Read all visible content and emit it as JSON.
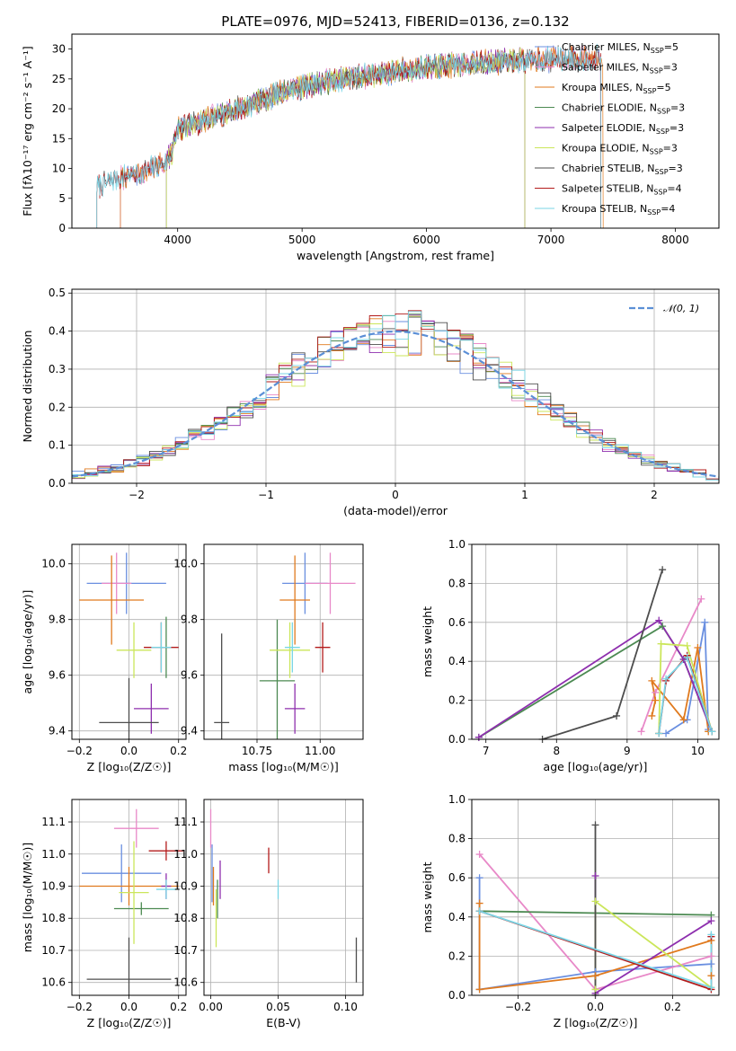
{
  "figure": {
    "title": "PLATE=0976, MJD=52413, FIBERID=0136, z=0.132"
  },
  "colors": {
    "Chabrier MILES": "#6a8fe0",
    "Salpeter MILES": "#e889c8",
    "Kroupa MILES": "#e07a1e",
    "Chabrier ELODIE": "#4c8a52",
    "Salpeter ELODIE": "#8e2fae",
    "Kroupa ELODIE": "#cbe65a",
    "Chabrier STELIB": "#4d4d4d",
    "Salpeter STELIB": "#b31b1b",
    "Kroupa STELIB": "#79d6e6",
    "normal": "#5b8fd6"
  },
  "chart_data": [
    {
      "id": "spectrum",
      "type": "line",
      "xlabel": "wavelength [Angstrom, rest frame]",
      "ylabel": "Flux [fλ10⁻¹⁷ erg cm⁻² s⁻¹ A⁻¹]",
      "xlim": [
        3150,
        8350
      ],
      "ylim": [
        0,
        32.5
      ],
      "xticks": [
        4000,
        5000,
        6000,
        7000,
        8000
      ],
      "yticks": [
        0,
        5,
        10,
        15,
        20,
        25,
        30
      ],
      "grid": false,
      "legend_position": "upper right",
      "continuum": [
        [
          3350,
          7
        ],
        [
          3550,
          8.5
        ],
        [
          3700,
          9.2
        ],
        [
          3900,
          11
        ],
        [
          3960,
          13
        ],
        [
          4000,
          16.5
        ],
        [
          4200,
          18
        ],
        [
          4500,
          20
        ],
        [
          4800,
          22.5
        ],
        [
          5100,
          24.2
        ],
        [
          5500,
          25.5
        ],
        [
          6000,
          27
        ],
        [
          6500,
          27.8
        ],
        [
          7000,
          28.3
        ],
        [
          7400,
          28.6
        ]
      ],
      "series": [
        {
          "name": "Chabrier MILES, N_SSP=5",
          "model": "Chabrier MILES",
          "xrange": [
            3540,
            7400
          ]
        },
        {
          "name": "Salpeter MILES, N_SSP=3",
          "model": "Salpeter MILES",
          "xrange": [
            3540,
            7400
          ]
        },
        {
          "name": "Kroupa MILES, N_SSP=5",
          "model": "Kroupa MILES",
          "xrange": [
            3540,
            7420
          ]
        },
        {
          "name": "Chabrier ELODIE, N_SSP=3",
          "model": "Chabrier ELODIE",
          "xrange": [
            3910,
            6790
          ]
        },
        {
          "name": "Salpeter ELODIE, N_SSP=3",
          "model": "Salpeter ELODIE",
          "xrange": [
            3910,
            6790
          ]
        },
        {
          "name": "Kroupa ELODIE, N_SSP=3",
          "model": "Kroupa ELODIE",
          "xrange": [
            3910,
            6790
          ]
        },
        {
          "name": "Chabrier STELIB, N_SSP=3",
          "model": "Chabrier STELIB",
          "xrange": [
            3350,
            7400
          ]
        },
        {
          "name": "Salpeter STELIB, N_SSP=4",
          "model": "Salpeter STELIB",
          "xrange": [
            3350,
            7400
          ]
        },
        {
          "name": "Kroupa STELIB, N_SSP=4",
          "model": "Kroupa STELIB",
          "xrange": [
            3350,
            7400
          ]
        }
      ],
      "legend": [
        {
          "model": "Chabrier MILES",
          "label": "Chabrier MILES, N",
          "sub": "SSP",
          "suffix": "=5"
        },
        {
          "model": "Salpeter MILES",
          "label": "Salpeter MILES, N",
          "sub": "SSP",
          "suffix": "=3"
        },
        {
          "model": "Kroupa MILES",
          "label": "Kroupa MILES, N",
          "sub": "SSP",
          "suffix": "=5"
        },
        {
          "model": "Chabrier ELODIE",
          "label": "Chabrier ELODIE, N",
          "sub": "SSP",
          "suffix": "=3"
        },
        {
          "model": "Salpeter ELODIE",
          "label": "Salpeter ELODIE, N",
          "sub": "SSP",
          "suffix": "=3"
        },
        {
          "model": "Kroupa ELODIE",
          "label": "Kroupa ELODIE, N",
          "sub": "SSP",
          "suffix": "=3"
        },
        {
          "model": "Chabrier STELIB",
          "label": "Chabrier STELIB, N",
          "sub": "SSP",
          "suffix": "=3"
        },
        {
          "model": "Salpeter STELIB",
          "label": "Salpeter STELIB, N",
          "sub": "SSP",
          "suffix": "=4"
        },
        {
          "model": "Kroupa STELIB",
          "label": "Kroupa STELIB, N",
          "sub": "SSP",
          "suffix": "=4"
        }
      ]
    },
    {
      "id": "residuals",
      "type": "line",
      "xlabel": "(data-model)/error",
      "ylabel": "Normed distribution",
      "xlim": [
        -2.5,
        2.5
      ],
      "ylim": [
        0,
        0.51
      ],
      "xticks": [
        -2,
        -1,
        0,
        1,
        2
      ],
      "yticks": [
        0.0,
        0.1,
        0.2,
        0.3,
        0.4,
        0.5
      ],
      "grid": true,
      "bin_width": 0.1,
      "legend_position": "upper right",
      "legend_label": "𝒩(0, 1)",
      "series_models": [
        "Chabrier MILES",
        "Salpeter MILES",
        "Kroupa MILES",
        "Chabrier ELODIE",
        "Salpeter ELODIE",
        "Kroupa ELODIE",
        "Chabrier STELIB",
        "Salpeter STELIB",
        "Kroupa STELIB"
      ]
    },
    {
      "id": "age_vs_Z",
      "type": "scatter",
      "xlabel": "Z [log₁₀(Z/Z☉)]",
      "ylabel": "age  [log₁₀(age/yr)]",
      "xlim": [
        -0.23,
        0.23
      ],
      "ylim": [
        9.37,
        10.07
      ],
      "xticks": [
        -0.2,
        0.0,
        0.2
      ],
      "yticks": [
        9.4,
        9.6,
        9.8,
        10.0
      ],
      "grid": true,
      "points": [
        {
          "model": "Chabrier MILES",
          "x": -0.01,
          "y": 9.93,
          "xerr": 0.16,
          "yerr": 0.11
        },
        {
          "model": "Salpeter MILES",
          "x": -0.05,
          "y": 9.93,
          "xerr": 0.06,
          "yerr": 0.11
        },
        {
          "model": "Kroupa MILES",
          "x": -0.07,
          "y": 9.87,
          "xerr": 0.13,
          "yerr": 0.16
        },
        {
          "model": "Chabrier ELODIE",
          "x": 0.15,
          "y": 9.7,
          "xerr": 0.02,
          "yerr": 0.11
        },
        {
          "model": "Salpeter ELODIE",
          "x": 0.09,
          "y": 9.48,
          "xerr": 0.07,
          "yerr": 0.09
        },
        {
          "model": "Kroupa ELODIE",
          "x": 0.02,
          "y": 9.69,
          "xerr": 0.07,
          "yerr": 0.1
        },
        {
          "model": "Chabrier STELIB",
          "x": 0.0,
          "y": 9.43,
          "xerr": 0.12,
          "yerr": 0.16
        },
        {
          "model": "Salpeter STELIB",
          "x": 0.13,
          "y": 9.7,
          "xerr": 0.07,
          "yerr": 0.09
        },
        {
          "model": "Kroupa STELIB",
          "x": 0.13,
          "y": 9.7,
          "xerr": 0.04,
          "yerr": 0.09
        }
      ]
    },
    {
      "id": "age_vs_mass",
      "type": "scatter",
      "xlabel": "mass [log₁₀(M/M☉)]",
      "ylabel": "",
      "xlim": [
        10.54,
        11.17
      ],
      "ylim": [
        9.37,
        10.07
      ],
      "xticks": [
        10.75,
        11.0
      ],
      "yticks": [
        9.4,
        9.6,
        9.8,
        10.0
      ],
      "grid": true,
      "points": [
        {
          "model": "Chabrier MILES",
          "x": 10.94,
          "y": 9.93,
          "xerr": 0.09,
          "yerr": 0.11
        },
        {
          "model": "Salpeter MILES",
          "x": 11.04,
          "y": 9.93,
          "xerr": 0.1,
          "yerr": 0.11
        },
        {
          "model": "Kroupa MILES",
          "x": 10.9,
          "y": 9.87,
          "xerr": 0.06,
          "yerr": 0.16
        },
        {
          "model": "Chabrier ELODIE",
          "x": 10.83,
          "y": 9.58,
          "xerr": 0.07,
          "yerr": 0.22
        },
        {
          "model": "Salpeter ELODIE",
          "x": 10.9,
          "y": 9.48,
          "xerr": 0.04,
          "yerr": 0.09
        },
        {
          "model": "Kroupa ELODIE",
          "x": 10.88,
          "y": 9.69,
          "xerr": 0.08,
          "yerr": 0.1
        },
        {
          "model": "Chabrier STELIB",
          "x": 10.61,
          "y": 9.43,
          "xerr": 0.03,
          "yerr": 0.32
        },
        {
          "model": "Salpeter STELIB",
          "x": 11.01,
          "y": 9.7,
          "xerr": 0.03,
          "yerr": 0.09
        },
        {
          "model": "Kroupa STELIB",
          "x": 10.89,
          "y": 9.7,
          "xerr": 0.03,
          "yerr": 0.09
        }
      ]
    },
    {
      "id": "mass_weight_vs_age",
      "type": "line",
      "xlabel": "age  [log₁₀(age/yr)]",
      "ylabel": "mass weight",
      "xlim": [
        6.8,
        10.3
      ],
      "ylim": [
        0,
        1.0
      ],
      "xticks": [
        7,
        8,
        9,
        10
      ],
      "yticks": [
        0.0,
        0.2,
        0.4,
        0.6,
        0.8,
        1.0
      ],
      "grid": true,
      "series": [
        {
          "model": "Chabrier MILES",
          "x": [
            9.55,
            9.85,
            10.1,
            10.15
          ],
          "y": [
            0.03,
            0.1,
            0.6,
            0.05
          ]
        },
        {
          "model": "Salpeter MILES",
          "x": [
            9.2,
            9.4,
            10.05
          ],
          "y": [
            0.04,
            0.24,
            0.72
          ]
        },
        {
          "model": "Kroupa MILES",
          "x": [
            9.35,
            9.4,
            9.35,
            9.8,
            10.0,
            10.15
          ],
          "y": [
            0.12,
            0.2,
            0.3,
            0.1,
            0.47,
            0.04
          ]
        },
        {
          "model": "Chabrier ELODIE",
          "x": [
            6.9,
            9.5,
            9.8,
            10.2
          ],
          "y": [
            0.01,
            0.58,
            0.41,
            0.04
          ]
        },
        {
          "model": "Salpeter ELODIE",
          "x": [
            6.9,
            9.45,
            9.8,
            10.2
          ],
          "y": [
            0.01,
            0.61,
            0.41,
            0.04
          ]
        },
        {
          "model": "Kroupa ELODIE",
          "x": [
            9.45,
            9.48,
            9.85,
            10.2
          ],
          "y": [
            0.03,
            0.49,
            0.48,
            0.04
          ]
        },
        {
          "model": "Chabrier STELIB",
          "x": [
            7.8,
            8.85,
            9.5
          ],
          "y": [
            0.0,
            0.12,
            0.87
          ]
        },
        {
          "model": "Salpeter STELIB",
          "x": [
            9.45,
            9.55,
            9.85,
            10.2
          ],
          "y": [
            0.03,
            0.3,
            0.43,
            0.04
          ]
        },
        {
          "model": "Kroupa STELIB",
          "x": [
            9.45,
            9.55,
            9.85,
            10.2
          ],
          "y": [
            0.03,
            0.31,
            0.42,
            0.04
          ]
        }
      ]
    },
    {
      "id": "mass_vs_Z",
      "type": "scatter",
      "xlabel": "Z [log₁₀(Z/Z☉)]",
      "ylabel": "mass [log₁₀(M/M☉)]",
      "xlim": [
        -0.23,
        0.23
      ],
      "ylim": [
        10.56,
        11.17
      ],
      "xticks": [
        -0.2,
        0.0,
        0.2
      ],
      "yticks": [
        10.6,
        10.7,
        10.8,
        10.9,
        11.0,
        11.1
      ],
      "grid": true,
      "points": [
        {
          "model": "Chabrier MILES",
          "x": -0.03,
          "y": 10.94,
          "xerr": 0.16,
          "yerr": 0.09
        },
        {
          "model": "Salpeter MILES",
          "x": 0.03,
          "y": 11.08,
          "xerr": 0.09,
          "yerr": 0.06
        },
        {
          "model": "Kroupa MILES",
          "x": 0.0,
          "y": 10.9,
          "xerr": 0.2,
          "yerr": 0.06
        },
        {
          "model": "Chabrier ELODIE",
          "x": 0.05,
          "y": 10.83,
          "xerr": 0.11,
          "yerr": 0.02
        },
        {
          "model": "Salpeter ELODIE",
          "x": 0.15,
          "y": 10.9,
          "xerr": 0.02,
          "yerr": 0.04
        },
        {
          "model": "Kroupa ELODIE",
          "x": 0.02,
          "y": 10.88,
          "xerr": 0.06,
          "yerr": 0.16
        },
        {
          "model": "Chabrier STELIB",
          "x": 0.0,
          "y": 10.61,
          "xerr": 0.17,
          "yerr": 0.13
        },
        {
          "model": "Salpeter STELIB",
          "x": 0.15,
          "y": 11.01,
          "xerr": 0.07,
          "yerr": 0.03
        },
        {
          "model": "Kroupa STELIB",
          "x": 0.15,
          "y": 10.89,
          "xerr": 0.04,
          "yerr": 0.03
        }
      ]
    },
    {
      "id": "mass_vs_ebv",
      "type": "scatter",
      "xlabel": "E(B-V)",
      "ylabel": "",
      "xlim": [
        -0.005,
        0.113
      ],
      "ylim": [
        10.56,
        11.17
      ],
      "xticks": [
        0.0,
        0.05,
        0.1
      ],
      "yticks": [
        10.6,
        10.7,
        10.8,
        10.9,
        11.0,
        11.1
      ],
      "grid": true,
      "points": [
        {
          "model": "Chabrier MILES",
          "x": 0.001,
          "y": 10.94,
          "xerr": 0.0,
          "yerr": 0.09
        },
        {
          "model": "Salpeter MILES",
          "x": 0.0,
          "y": 11.08,
          "xerr": 0.0,
          "yerr": 0.06
        },
        {
          "model": "Kroupa MILES",
          "x": 0.002,
          "y": 10.9,
          "xerr": 0.0,
          "yerr": 0.06
        },
        {
          "model": "Chabrier ELODIE",
          "x": 0.005,
          "y": 10.86,
          "xerr": 0.0,
          "yerr": 0.06
        },
        {
          "model": "Salpeter ELODIE",
          "x": 0.007,
          "y": 10.92,
          "xerr": 0.0,
          "yerr": 0.06
        },
        {
          "model": "Kroupa ELODIE",
          "x": 0.004,
          "y": 10.8,
          "xerr": 0.0,
          "yerr": 0.09
        },
        {
          "model": "Chabrier STELIB",
          "x": 0.108,
          "y": 10.67,
          "xerr": 0.0,
          "yerr": 0.07
        },
        {
          "model": "Salpeter STELIB",
          "x": 0.043,
          "y": 10.98,
          "xerr": 0.0,
          "yerr": 0.04
        },
        {
          "model": "Kroupa STELIB",
          "x": 0.05,
          "y": 10.89,
          "xerr": 0.0,
          "yerr": 0.03
        }
      ]
    },
    {
      "id": "mass_weight_vs_Z",
      "type": "line",
      "xlabel": "Z [log₁₀(Z/Z☉)]",
      "ylabel": "mass weight",
      "xlim": [
        -0.32,
        0.32
      ],
      "ylim": [
        0,
        1.0
      ],
      "xticks": [
        -0.2,
        0.0,
        0.2
      ],
      "yticks": [
        0.0,
        0.2,
        0.4,
        0.6,
        0.8,
        1.0
      ],
      "grid": true,
      "series": [
        {
          "model": "Chabrier MILES",
          "x": [
            -0.3,
            -0.3,
            0.0,
            0.3,
            0.3
          ],
          "y": [
            0.6,
            0.03,
            0.12,
            0.16,
            0.3
          ]
        },
        {
          "model": "Salpeter MILES",
          "x": [
            -0.3,
            0.0,
            0.3,
            0.3
          ],
          "y": [
            0.72,
            0.03,
            0.2,
            0.3
          ]
        },
        {
          "model": "Kroupa MILES",
          "x": [
            -0.3,
            -0.3,
            0.0,
            0.3,
            0.3
          ],
          "y": [
            0.47,
            0.03,
            0.1,
            0.28,
            0.1
          ]
        },
        {
          "model": "Chabrier ELODIE",
          "x": [
            -0.3,
            0.3
          ],
          "y": [
            0.43,
            0.41
          ]
        },
        {
          "model": "Salpeter ELODIE",
          "x": [
            0.0,
            0.0,
            0.3
          ],
          "y": [
            0.61,
            0.01,
            0.38
          ]
        },
        {
          "model": "Kroupa ELODIE",
          "x": [
            0.0,
            0.0,
            0.3
          ],
          "y": [
            0.03,
            0.48,
            0.04
          ]
        },
        {
          "model": "Chabrier STELIB",
          "x": [
            0.0,
            0.0
          ],
          "y": [
            0.0,
            0.87
          ]
        },
        {
          "model": "Salpeter STELIB",
          "x": [
            -0.3,
            0.3,
            0.3
          ],
          "y": [
            0.43,
            0.03,
            0.3
          ]
        },
        {
          "model": "Kroupa STELIB",
          "x": [
            -0.3,
            0.3,
            0.3
          ],
          "y": [
            0.43,
            0.04,
            0.31
          ]
        }
      ]
    }
  ]
}
